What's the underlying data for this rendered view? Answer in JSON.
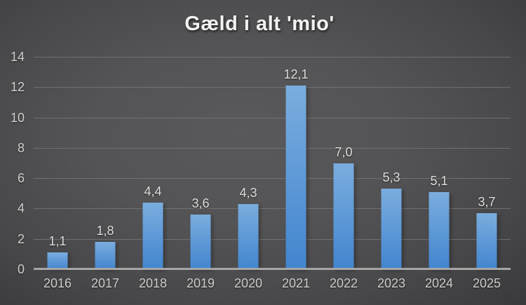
{
  "chart_data": {
    "type": "bar",
    "title": "Gæld i alt 'mio'",
    "categories": [
      "2016",
      "2017",
      "2018",
      "2019",
      "2020",
      "2021",
      "2022",
      "2023",
      "2024",
      "2025"
    ],
    "values": [
      1.1,
      1.8,
      4.4,
      3.6,
      4.3,
      12.1,
      7.0,
      5.3,
      5.1,
      3.7
    ],
    "value_labels": [
      "1,1",
      "1,8",
      "4,4",
      "3,6",
      "4,3",
      "12,1",
      "7,0",
      "5,3",
      "5,1",
      "3,7"
    ],
    "xlabel": "",
    "ylabel": "",
    "ylim": [
      0,
      14
    ],
    "yticks": [
      0,
      2,
      4,
      6,
      8,
      10,
      12,
      14
    ],
    "ytick_labels": [
      "0",
      "2",
      "4",
      "6",
      "8",
      "10",
      "12",
      "14"
    ],
    "grid": true,
    "legend": false,
    "colors": {
      "bar_top": "#7badde",
      "bar_bottom": "#4285cf",
      "gridline": "#787878",
      "axis_line": "#a6a6a6",
      "tick_label": "#cfcfcf",
      "value_label": "#dcdcdc",
      "title": "#f2f2f2",
      "background_center": "#575757",
      "background_edge": "#1e1e20"
    }
  }
}
